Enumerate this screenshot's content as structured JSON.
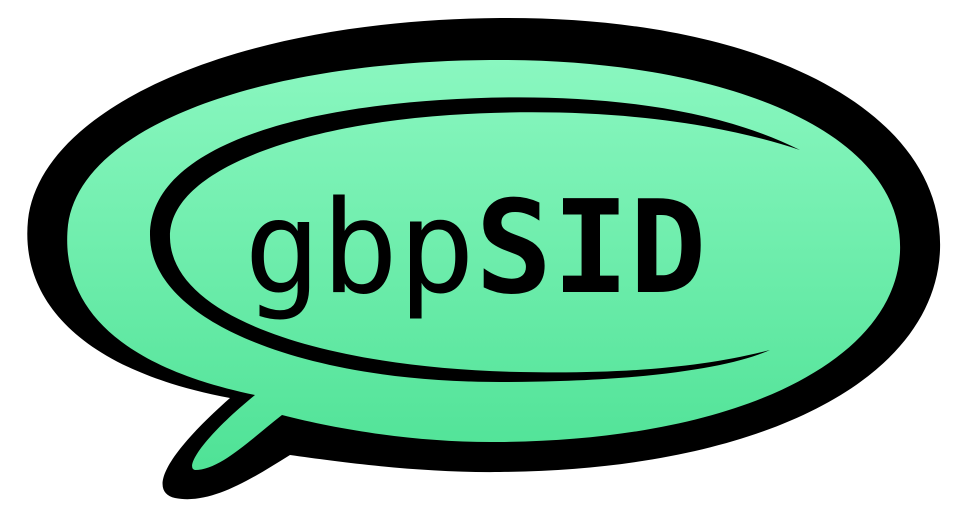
{
  "logo": {
    "text_regular": "gbp",
    "text_bold": "SID"
  }
}
